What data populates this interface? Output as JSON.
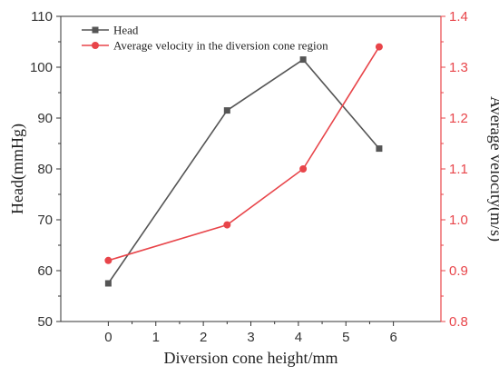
{
  "chart_data": {
    "type": "line",
    "xlabel": "Diversion cone height/mm",
    "ylabel_left": "Head(mmHg)",
    "ylabel_right": "Average velocity(m/s)",
    "xlim": [
      -1,
      7
    ],
    "ylim_left": [
      50,
      110
    ],
    "ylim_right": [
      0.8,
      1.4
    ],
    "x_ticks": [
      0,
      1,
      2,
      3,
      4,
      5,
      6
    ],
    "y_left_ticks": [
      50,
      60,
      70,
      80,
      90,
      100,
      110
    ],
    "y_right_ticks": [
      "0.8",
      "0.9",
      "1.0",
      "1.1",
      "1.2",
      "1.3",
      "1.4"
    ],
    "legend_position": "top-left",
    "grid": false,
    "series": [
      {
        "name": "Head",
        "axis": "left",
        "marker": "square",
        "color": "#555555",
        "x": [
          0,
          2.5,
          4.1,
          5.7
        ],
        "y": [
          57.5,
          91.5,
          101.5,
          84
        ]
      },
      {
        "name": "Average velocity in the diversion cone region",
        "axis": "right",
        "marker": "circle",
        "color": "#e8454a",
        "x": [
          0,
          2.5,
          4.1,
          5.7
        ],
        "y": [
          0.92,
          0.99,
          1.1,
          1.34
        ]
      }
    ]
  }
}
